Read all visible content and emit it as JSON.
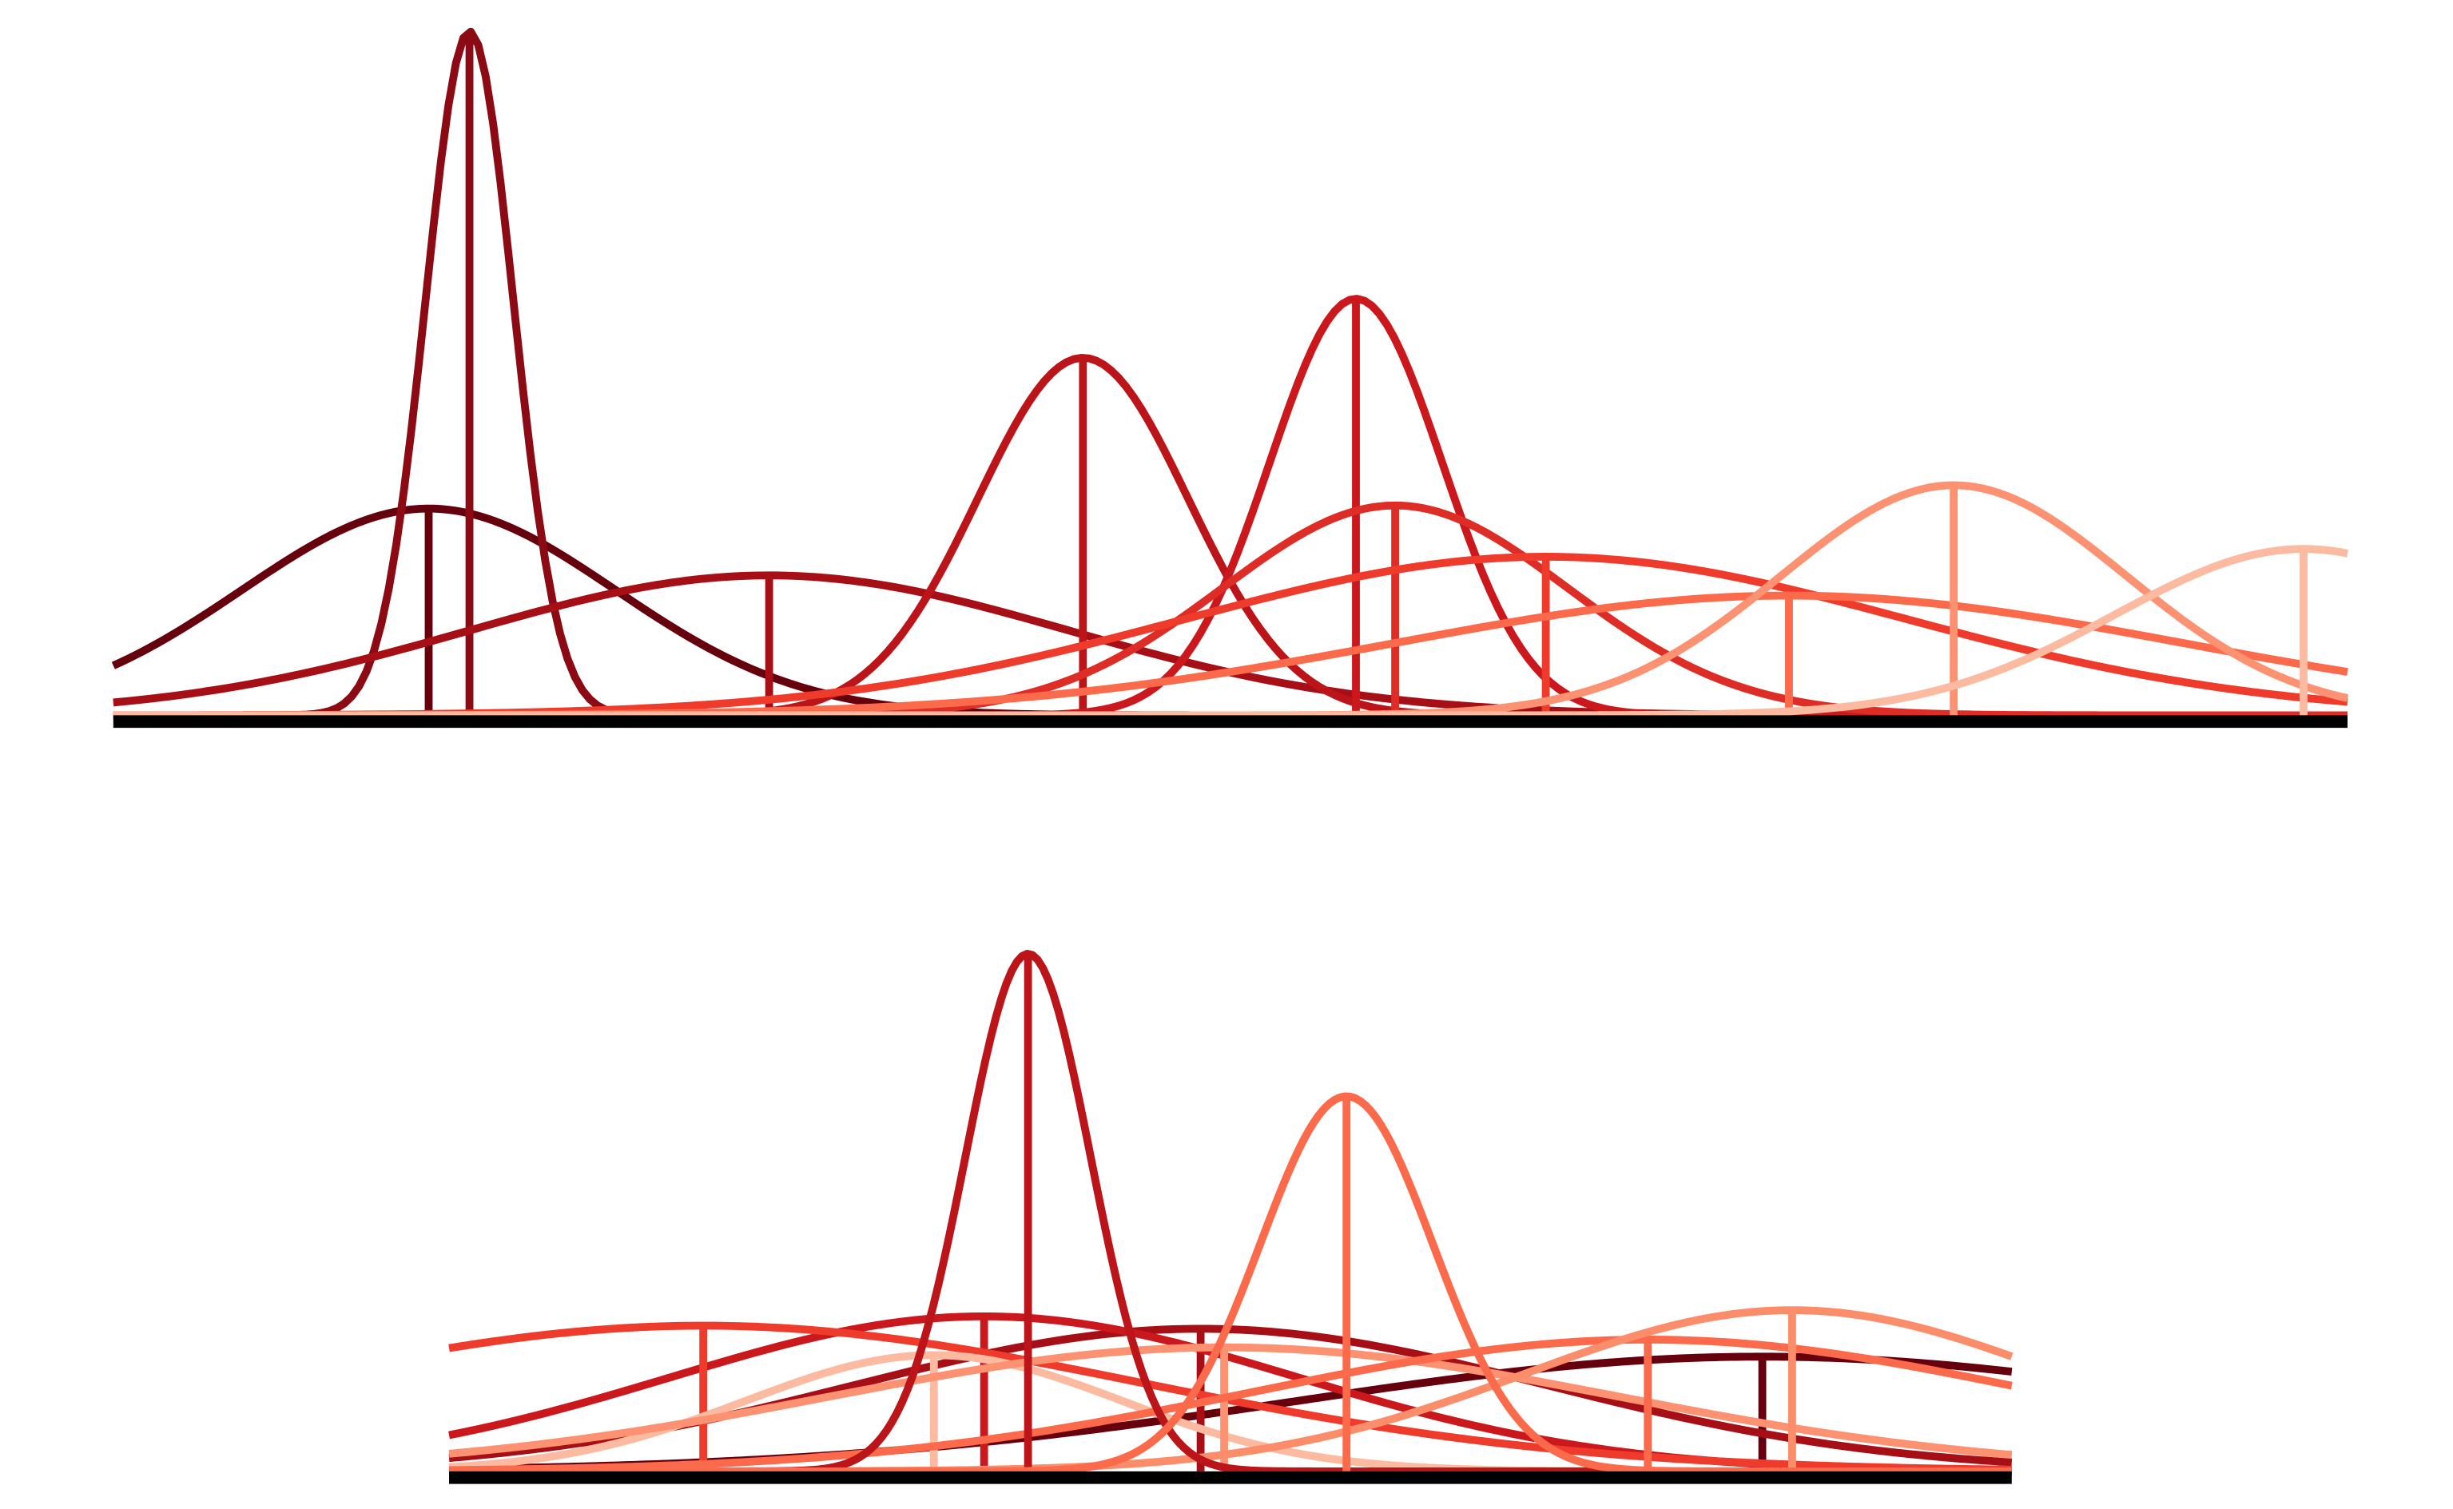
{
  "chart_data": [
    {
      "type": "density",
      "xlim": [
        72,
        1496
      ],
      "ylim": [
        0,
        440
      ],
      "series": [
        {
          "color": "#67000d",
          "mean": 273,
          "sd": 119,
          "peak": 133
        },
        {
          "color": "#8b0a14",
          "mean": 299,
          "sd": 28,
          "peak": 440
        },
        {
          "color": "#a50f15",
          "mean": 490,
          "sd": 191,
          "peak": 90
        },
        {
          "color": "#bb151a",
          "mean": 690,
          "sd": 67,
          "peak": 230
        },
        {
          "color": "#cb181d",
          "mean": 864,
          "sd": 55,
          "peak": 268
        },
        {
          "color": "#de2d26",
          "mean": 889,
          "sd": 110,
          "peak": 135
        },
        {
          "color": "#ef3b2c",
          "mean": 985,
          "sd": 230,
          "peak": 102
        },
        {
          "color": "#fb6a4a",
          "mean": 1140,
          "sd": 250,
          "peak": 77
        },
        {
          "color": "#fc9272",
          "mean": 1245,
          "sd": 110,
          "peak": 148
        },
        {
          "color": "#fcbba1",
          "mean": 1468,
          "sd": 120,
          "peak": 107
        }
      ]
    },
    {
      "type": "density",
      "xlim": [
        286,
        1282
      ],
      "ylim": [
        0,
        334
      ],
      "series": [
        {
          "color": "#67000d",
          "mean": 1123,
          "sd": 300,
          "peak": 74
        },
        {
          "color": "#a50f15",
          "mean": 765,
          "sd": 220,
          "peak": 92
        },
        {
          "color": "#cb181d",
          "mean": 627,
          "sd": 200,
          "peak": 100
        },
        {
          "color": "#ef3b2c",
          "mean": 448,
          "sd": 280,
          "peak": 94
        },
        {
          "color": "#fcbba1",
          "mean": 595,
          "sd": 120,
          "peak": 75
        },
        {
          "color": "#fc9272",
          "mean": 780,
          "sd": 250,
          "peak": 80
        },
        {
          "color": "#fb6a4a",
          "mean": 1050,
          "sd": 250,
          "peak": 85
        },
        {
          "color": "#fc8d6a",
          "mean": 1142,
          "sd": 170,
          "peak": 104
        },
        {
          "color": "#bb151a",
          "mean": 655,
          "sd": 40,
          "peak": 334
        },
        {
          "color": "#fb6a4a",
          "mean": 858,
          "sd": 55,
          "peak": 242
        }
      ]
    }
  ]
}
